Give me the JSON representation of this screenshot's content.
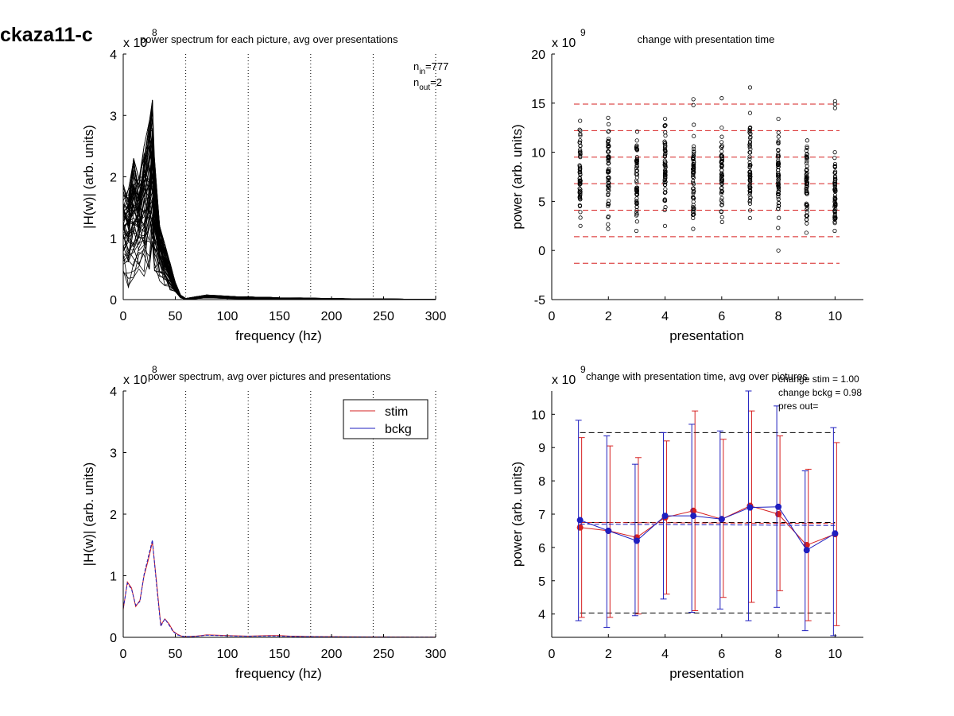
{
  "figure": {
    "title": "ckaza11-c"
  },
  "chart_data": [
    {
      "id": "panel1",
      "type": "line",
      "title": "power spectrum for each picture, avg over presentations",
      "xlabel": "frequency (hz)",
      "ylabel": "|H(w)| (arb. units)",
      "exponent_label": "x 10",
      "exponent_power": "8",
      "xlim": [
        0,
        300
      ],
      "ylim": [
        0,
        4
      ],
      "xticks": [
        0,
        50,
        100,
        150,
        200,
        250,
        300
      ],
      "yticks": [
        0,
        1,
        2,
        3,
        4
      ],
      "vlines": [
        60,
        120,
        180,
        240,
        300
      ],
      "annotations": {
        "n_in_label": "n",
        "n_in_sub": "in",
        "n_in_value": "=777",
        "n_out_label": "n",
        "n_out_sub": "out",
        "n_out_value": "=2"
      },
      "x": [
        0,
        5,
        10,
        15,
        20,
        25,
        28,
        30,
        35,
        40,
        45,
        50,
        55,
        60,
        70,
        80,
        90,
        100,
        110,
        120,
        130,
        140,
        150,
        160,
        170,
        180,
        200,
        220,
        240,
        260,
        280,
        300
      ],
      "curve_count": 60,
      "envelope_low": [
        0.3,
        0.2,
        0.3,
        0.4,
        0.3,
        0.4,
        0.5,
        0.4,
        0.3,
        0.2,
        0.15,
        0.1,
        0.02,
        0,
        0.01,
        0.02,
        0.015,
        0.01,
        0.008,
        0.005,
        0.004,
        0.003,
        0.003,
        0.003,
        0.002,
        0.002,
        0.001,
        0.001,
        0.001,
        0.0005,
        0.0005,
        0.0005
      ],
      "envelope_high": [
        1.9,
        1.8,
        2.3,
        2.0,
        2.5,
        2.9,
        3.25,
        2.3,
        1.2,
        0.9,
        0.6,
        0.3,
        0.08,
        0.02,
        0.05,
        0.08,
        0.07,
        0.06,
        0.05,
        0.05,
        0.04,
        0.04,
        0.03,
        0.03,
        0.03,
        0.025,
        0.02,
        0.015,
        0.012,
        0.01,
        0.008,
        0.006
      ]
    },
    {
      "id": "panel2",
      "type": "scatter",
      "title": "change with presentation time",
      "xlabel": "presentation",
      "ylabel": "power (arb. units)",
      "exponent_label": "x 10",
      "exponent_power": "9",
      "xlim": [
        0,
        11
      ],
      "ylim": [
        -5,
        20
      ],
      "xticks": [
        0,
        2,
        4,
        6,
        8,
        10
      ],
      "yticks": [
        -5,
        0,
        5,
        10,
        15,
        20
      ],
      "hlines": [
        14.9,
        12.2,
        9.5,
        6.8,
        4.1,
        1.4,
        -1.3
      ],
      "hline_color": "#d62020",
      "columns": [
        {
          "x": 1,
          "min": 2.5,
          "max": 13.2,
          "outliers": []
        },
        {
          "x": 2,
          "min": 2.2,
          "max": 13.5,
          "outliers": []
        },
        {
          "x": 3,
          "min": 2.0,
          "max": 12.1,
          "outliers": []
        },
        {
          "x": 4,
          "min": 2.5,
          "max": 13.4,
          "outliers": []
        },
        {
          "x": 5,
          "min": 2.2,
          "max": 12.8,
          "outliers": [
            14.8,
            15.4
          ]
        },
        {
          "x": 6,
          "min": 2.9,
          "max": 12.5,
          "outliers": [
            15.5
          ]
        },
        {
          "x": 7,
          "min": 3.3,
          "max": 14.0,
          "outliers": [
            16.6
          ]
        },
        {
          "x": 8,
          "min": 2.3,
          "max": 12.0,
          "outliers": [
            13.4,
            0.0
          ]
        },
        {
          "x": 9,
          "min": 1.8,
          "max": 11.2,
          "outliers": []
        },
        {
          "x": 10,
          "min": 2.0,
          "max": 10.0,
          "outliers": [
            14.5,
            14.9,
            15.2
          ]
        }
      ]
    },
    {
      "id": "panel3",
      "type": "line",
      "title": "power spectrum, avg over pictures and presentations",
      "xlabel": "frequency (hz)",
      "ylabel": "|H(w)| (arb. units)",
      "exponent_label": "x 10",
      "exponent_power": "8",
      "xlim": [
        0,
        300
      ],
      "ylim": [
        0,
        4
      ],
      "xticks": [
        0,
        50,
        100,
        150,
        200,
        250,
        300
      ],
      "yticks": [
        0,
        1,
        2,
        3,
        4
      ],
      "vlines": [
        60,
        120,
        180,
        240,
        300
      ],
      "legend_position": "top-right",
      "x": [
        0,
        4,
        8,
        12,
        16,
        20,
        24,
        28,
        32,
        36,
        40,
        44,
        48,
        52,
        56,
        60,
        70,
        80,
        90,
        100,
        110,
        120,
        130,
        140,
        150,
        160,
        170,
        180,
        200,
        220,
        240,
        260,
        280,
        300
      ],
      "series": [
        {
          "name": "stim",
          "color": "#d62020",
          "values": [
            0.45,
            0.9,
            0.8,
            0.5,
            0.6,
            1.0,
            1.25,
            1.55,
            0.9,
            0.2,
            0.3,
            0.22,
            0.1,
            0.05,
            0.02,
            0.01,
            0.02,
            0.04,
            0.035,
            0.03,
            0.025,
            0.02,
            0.025,
            0.03,
            0.028,
            0.02,
            0.015,
            0.012,
            0.01,
            0.008,
            0.006,
            0.005,
            0.004,
            0.003
          ]
        },
        {
          "name": "bckg",
          "color": "#1f1fbf",
          "values": [
            0.47,
            0.88,
            0.78,
            0.52,
            0.58,
            1.02,
            1.3,
            1.58,
            0.85,
            0.18,
            0.3,
            0.2,
            0.09,
            0.04,
            0.02,
            0.01,
            0.015,
            0.035,
            0.03,
            0.025,
            0.02,
            0.018,
            0.02,
            0.022,
            0.02,
            0.015,
            0.012,
            0.01,
            0.008,
            0.006,
            0.005,
            0.004,
            0.003,
            0.002
          ]
        }
      ]
    },
    {
      "id": "panel4",
      "type": "line",
      "title": "change with presentation time, avg over pictures",
      "xlabel": "presentation",
      "ylabel": "power (arb. units)",
      "exponent_label": "x 10",
      "exponent_power": "9",
      "xlim": [
        0,
        11
      ],
      "ylim": [
        3.3,
        10.7
      ],
      "xticks": [
        0,
        2,
        4,
        6,
        8,
        10
      ],
      "yticks": [
        4,
        5,
        6,
        7,
        8,
        9,
        10
      ],
      "annotations": {
        "change_stim": "change stim = 1.00",
        "change_bckg": "change bckg = 0.98",
        "pres_out": "pres out="
      },
      "hlines": [
        9.45,
        6.75,
        4.03
      ],
      "x": [
        1,
        2,
        3,
        4,
        5,
        6,
        7,
        8,
        9,
        10
      ],
      "series": [
        {
          "name": "stim",
          "color": "#d62020",
          "values": [
            6.6,
            6.5,
            6.3,
            6.9,
            7.1,
            6.85,
            7.25,
            7.0,
            6.07,
            6.4
          ],
          "err_low": [
            3.9,
            3.9,
            4.0,
            4.6,
            4.1,
            4.5,
            4.35,
            4.7,
            3.8,
            3.65
          ],
          "err_high": [
            9.3,
            9.05,
            8.7,
            9.2,
            10.1,
            9.25,
            10.1,
            9.35,
            8.35,
            9.15
          ],
          "trend": [
            6.75,
            6.72
          ]
        },
        {
          "name": "bckg",
          "color": "#1f1fbf",
          "values": [
            6.82,
            6.5,
            6.2,
            6.95,
            6.95,
            6.85,
            7.2,
            7.22,
            5.92,
            6.42
          ],
          "err_low": [
            3.8,
            3.6,
            3.95,
            4.45,
            4.05,
            4.15,
            3.8,
            4.2,
            3.5,
            3.35
          ],
          "err_high": [
            9.82,
            9.35,
            8.5,
            9.45,
            9.7,
            9.5,
            10.7,
            10.25,
            8.3,
            9.6
          ],
          "trend": [
            6.7,
            6.66
          ]
        }
      ]
    }
  ]
}
